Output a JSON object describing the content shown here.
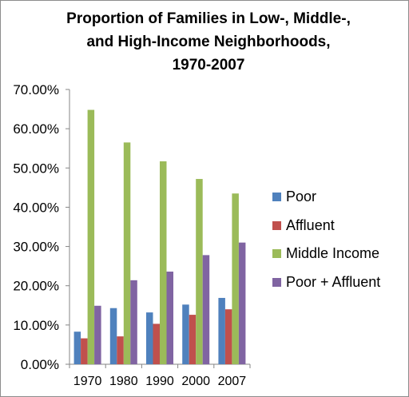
{
  "chart_data": {
    "type": "bar",
    "title_lines": [
      "Proportion of Families in Low-, Middle-,",
      "and High-Income Neighborhoods,",
      "1970-2007"
    ],
    "categories": [
      "1970",
      "1980",
      "1990",
      "2000",
      "2007"
    ],
    "series": [
      {
        "name": "Poor",
        "color": "#4f81bd",
        "values": [
          8.3,
          14.3,
          13.2,
          15.2,
          16.9
        ]
      },
      {
        "name": "Affluent",
        "color": "#c0504d",
        "values": [
          6.6,
          7.1,
          10.3,
          12.6,
          14.0
        ]
      },
      {
        "name": "Middle Income",
        "color": "#9bbb59",
        "values": [
          64.8,
          56.5,
          51.7,
          47.2,
          43.5
        ]
      },
      {
        "name": "Poor + Affluent",
        "color": "#8064a2",
        "values": [
          14.9,
          21.4,
          23.6,
          27.8,
          31.0
        ]
      }
    ],
    "y_ticks": [
      "0.00%",
      "10.00%",
      "20.00%",
      "30.00%",
      "40.00%",
      "50.00%",
      "60.00%",
      "70.00%"
    ],
    "ylim": [
      0,
      70
    ],
    "grid": false,
    "legend_position": "right",
    "xlabel": "",
    "ylabel": ""
  }
}
